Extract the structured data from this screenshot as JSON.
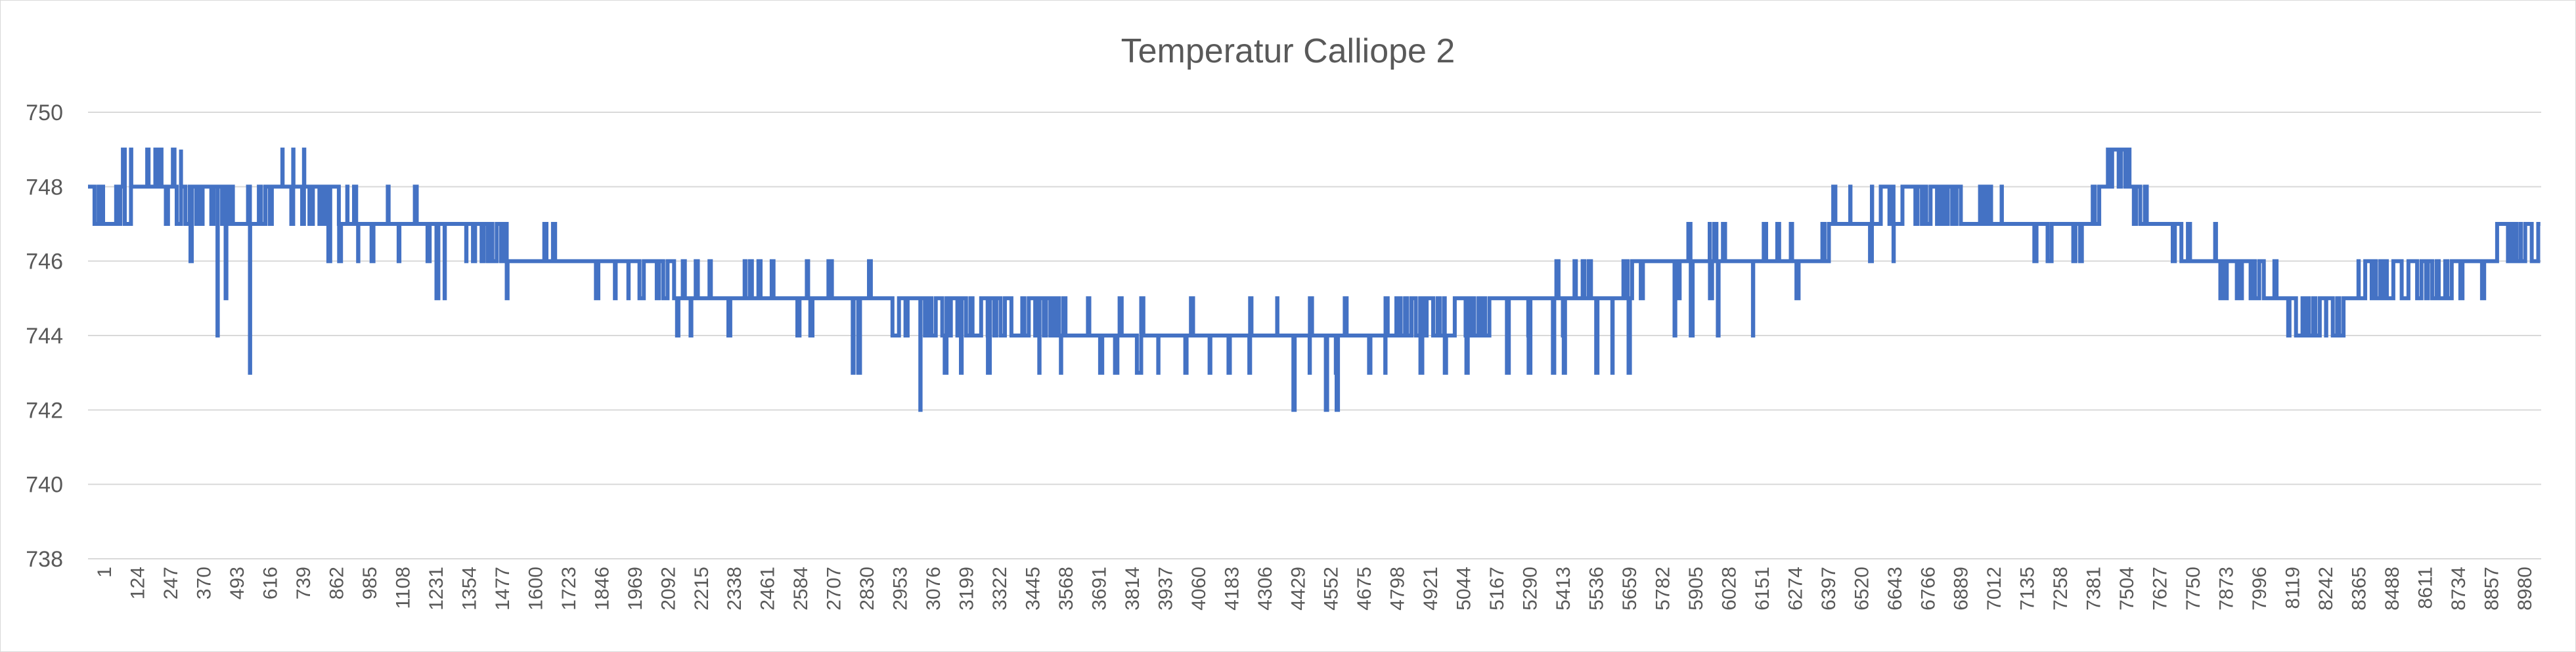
{
  "colors": {
    "series": "#4472c4",
    "grid": "#d9d9d9",
    "text": "#595959",
    "border": "#d9d9d9"
  },
  "chart_data": {
    "type": "line",
    "title": "Temperatur Calliope 2",
    "xlabel": "",
    "ylabel": "",
    "xlim": [
      1,
      9076
    ],
    "ylim": [
      738,
      750
    ],
    "y_ticks": [
      738,
      740,
      742,
      744,
      746,
      748,
      750
    ],
    "x_tick_labels": [
      "1",
      "124",
      "247",
      "370",
      "493",
      "616",
      "739",
      "862",
      "985",
      "1108",
      "1231",
      "1354",
      "1477",
      "1600",
      "1723",
      "1846",
      "1969",
      "2092",
      "2215",
      "2338",
      "2461",
      "2584",
      "2707",
      "2830",
      "2953",
      "3076",
      "3199",
      "3322",
      "3445",
      "3568",
      "3691",
      "3814",
      "3937",
      "4060",
      "4183",
      "4306",
      "4429",
      "4552",
      "4675",
      "4798",
      "4921",
      "5044",
      "5167",
      "5290",
      "5413",
      "5536",
      "5659",
      "5782",
      "5905",
      "6028",
      "6151",
      "6274",
      "6397",
      "6520",
      "6643",
      "6766",
      "6889",
      "7012",
      "7135",
      "7258",
      "7381",
      "7504",
      "7627",
      "7750",
      "7873",
      "7996",
      "8119",
      "8242",
      "8365",
      "8488",
      "8611",
      "8734",
      "8857",
      "8980"
    ],
    "grid": true,
    "legend": "none",
    "series": [
      {
        "name": "",
        "baseline": [
          [
            1,
            748
          ],
          [
            60,
            747
          ],
          [
            200,
            748
          ],
          [
            450,
            747.5
          ],
          [
            600,
            747
          ],
          [
            700,
            748
          ],
          [
            900,
            747.5
          ],
          [
            1000,
            747
          ],
          [
            1400,
            747
          ],
          [
            1500,
            746.5
          ],
          [
            1600,
            746
          ],
          [
            2000,
            746
          ],
          [
            2100,
            745.5
          ],
          [
            2300,
            745
          ],
          [
            2900,
            745
          ],
          [
            3000,
            744.5
          ],
          [
            3100,
            744.5
          ],
          [
            3500,
            744.5
          ],
          [
            3700,
            744
          ],
          [
            4700,
            744
          ],
          [
            4900,
            744.5
          ],
          [
            5000,
            744.5
          ],
          [
            5300,
            745
          ],
          [
            5600,
            745
          ],
          [
            5800,
            746
          ],
          [
            6400,
            746
          ],
          [
            6450,
            747
          ],
          [
            6600,
            747
          ],
          [
            6650,
            747.5
          ],
          [
            7000,
            747.5
          ],
          [
            7050,
            747
          ],
          [
            7250,
            747
          ],
          [
            7300,
            746.5
          ],
          [
            7400,
            747
          ],
          [
            7450,
            748
          ],
          [
            7500,
            749
          ],
          [
            7560,
            748
          ],
          [
            7600,
            747
          ],
          [
            7700,
            747
          ],
          [
            7750,
            746.5
          ],
          [
            7850,
            746
          ],
          [
            7950,
            746
          ],
          [
            8000,
            745.5
          ],
          [
            8100,
            745
          ],
          [
            8150,
            744.5
          ],
          [
            8300,
            744.5
          ],
          [
            8350,
            745
          ],
          [
            8450,
            745.5
          ],
          [
            8700,
            745.5
          ],
          [
            8800,
            746
          ],
          [
            8900,
            746
          ],
          [
            8950,
            746.5
          ],
          [
            9076,
            746.5
          ]
        ],
        "spikes": [
          [
            40,
            748
          ],
          [
            130,
            749
          ],
          [
            160,
            749
          ],
          [
            220,
            749
          ],
          [
            250,
            749
          ],
          [
            270,
            749
          ],
          [
            290,
            747
          ],
          [
            315,
            749
          ],
          [
            345,
            749
          ],
          [
            380,
            746
          ],
          [
            480,
            744
          ],
          [
            510,
            745
          ],
          [
            530,
            748
          ],
          [
            600,
            743
          ],
          [
            640,
            748
          ],
          [
            720,
            749
          ],
          [
            760,
            749
          ],
          [
            800,
            749
          ],
          [
            820,
            747
          ],
          [
            890,
            746
          ],
          [
            930,
            746
          ],
          [
            960,
            748
          ],
          [
            1000,
            746
          ],
          [
            1050,
            746
          ],
          [
            1110,
            748
          ],
          [
            1150,
            746
          ],
          [
            1210,
            748
          ],
          [
            1290,
            745
          ],
          [
            1320,
            745
          ],
          [
            1400,
            746
          ],
          [
            1480,
            746
          ],
          [
            1550,
            745
          ],
          [
            1650,
            746
          ],
          [
            1770,
            746
          ],
          [
            1880,
            745
          ],
          [
            1950,
            745
          ],
          [
            2000,
            745
          ],
          [
            2180,
            744
          ],
          [
            2230,
            744
          ],
          [
            2300,
            746
          ],
          [
            2370,
            744
          ],
          [
            2430,
            746
          ],
          [
            2530,
            746
          ],
          [
            2660,
            746
          ],
          [
            2740,
            746
          ],
          [
            2830,
            743
          ],
          [
            2850,
            743
          ],
          [
            2890,
            746
          ],
          [
            3000,
            744
          ],
          [
            3080,
            742
          ],
          [
            3120,
            745
          ],
          [
            3170,
            743
          ],
          [
            3230,
            743
          ],
          [
            3330,
            743
          ],
          [
            3460,
            745
          ],
          [
            3520,
            743
          ],
          [
            3600,
            743
          ],
          [
            3700,
            745
          ],
          [
            3800,
            743
          ],
          [
            3900,
            745
          ],
          [
            3960,
            743
          ],
          [
            4060,
            743
          ],
          [
            4150,
            743
          ],
          [
            4220,
            743
          ],
          [
            4300,
            745
          ],
          [
            4400,
            745
          ],
          [
            4460,
            742
          ],
          [
            4520,
            743
          ],
          [
            4580,
            742
          ],
          [
            4620,
            742
          ],
          [
            4650,
            745
          ],
          [
            4740,
            743
          ],
          [
            4800,
            743
          ],
          [
            4850,
            745
          ],
          [
            4930,
            743
          ],
          [
            5020,
            743
          ],
          [
            5100,
            743
          ],
          [
            5200,
            745
          ],
          [
            5250,
            743
          ],
          [
            5330,
            743
          ],
          [
            5420,
            743
          ],
          [
            5460,
            743
          ],
          [
            5500,
            746
          ],
          [
            5530,
            746
          ],
          [
            5580,
            743
          ],
          [
            5640,
            743
          ],
          [
            5690,
            746
          ],
          [
            5700,
            743
          ],
          [
            5780,
            746
          ],
          [
            5830,
            746
          ],
          [
            5870,
            744
          ],
          [
            5930,
            744
          ],
          [
            6000,
            747
          ],
          [
            6030,
            744
          ],
          [
            6090,
            746
          ],
          [
            6160,
            744
          ],
          [
            6200,
            747
          ],
          [
            6250,
            747
          ],
          [
            6300,
            747
          ],
          [
            6450,
            747
          ],
          [
            6520,
            748
          ],
          [
            6600,
            748
          ],
          [
            6680,
            746
          ],
          [
            6750,
            748
          ],
          [
            6900,
            748
          ],
          [
            7000,
            748
          ],
          [
            7080,
            748
          ],
          [
            7250,
            746
          ],
          [
            7300,
            747
          ],
          [
            7370,
            746
          ],
          [
            7480,
            748
          ],
          [
            7610,
            748
          ],
          [
            7700,
            747
          ],
          [
            7800,
            746
          ],
          [
            7870,
            747
          ],
          [
            7900,
            745
          ],
          [
            7950,
            745
          ],
          [
            8000,
            746
          ],
          [
            8050,
            745
          ],
          [
            8140,
            744
          ],
          [
            8200,
            744
          ],
          [
            8280,
            744
          ],
          [
            8400,
            746
          ],
          [
            8480,
            745
          ],
          [
            8560,
            745
          ],
          [
            8650,
            745
          ],
          [
            8740,
            745
          ],
          [
            8800,
            746
          ],
          [
            8930,
            747
          ],
          [
            9000,
            747
          ],
          [
            9060,
            746
          ]
        ]
      }
    ]
  }
}
